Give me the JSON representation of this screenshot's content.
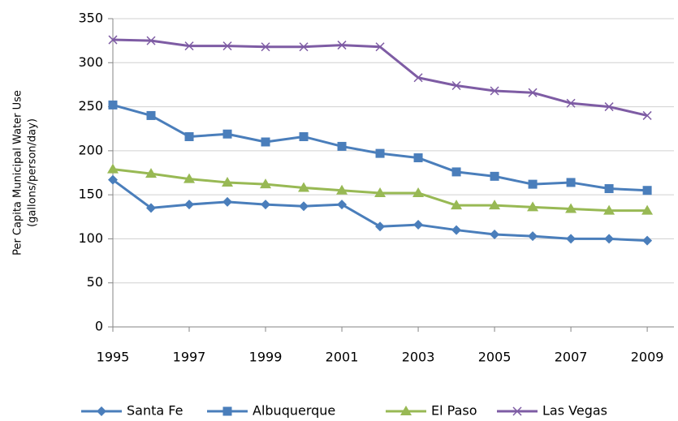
{
  "chart_data": {
    "type": "line",
    "ylabel": [
      "Per Capita Municipal Water Use",
      "(gallons/person/day)"
    ],
    "x": [
      1995,
      1996,
      1997,
      1998,
      1999,
      2000,
      2001,
      2002,
      2003,
      2004,
      2005,
      2006,
      2007,
      2008,
      2009
    ],
    "xlim": [
      1995,
      2009.7
    ],
    "xticks": [
      1995,
      1997,
      1999,
      2001,
      2003,
      2005,
      2007,
      2009
    ],
    "ylim": [
      0,
      350
    ],
    "yticks": [
      0,
      50,
      100,
      150,
      200,
      250,
      300,
      350
    ],
    "grid": true,
    "legend": "bottom",
    "series": [
      {
        "name": "Santa Fe",
        "color": "#4a7ebb",
        "marker": "diamond",
        "values": [
          167,
          135,
          139,
          142,
          139,
          137,
          139,
          114,
          116,
          110,
          105,
          103,
          100,
          100,
          98
        ]
      },
      {
        "name": "Albuquerque",
        "color": "#4a7ebb",
        "marker": "square",
        "values": [
          252,
          240,
          216,
          219,
          210,
          216,
          205,
          197,
          192,
          176,
          171,
          162,
          164,
          157,
          155
        ]
      },
      {
        "name": "El Paso",
        "color": "#98b954",
        "marker": "triangle",
        "values": [
          179,
          174,
          168,
          164,
          162,
          158,
          155,
          152,
          152,
          138,
          138,
          136,
          134,
          132,
          132
        ]
      },
      {
        "name": "Las Vegas",
        "color": "#7e5ca4",
        "marker": "x",
        "values": [
          326,
          325,
          319,
          319,
          318,
          318,
          320,
          318,
          283,
          274,
          268,
          266,
          254,
          250,
          240
        ]
      }
    ]
  }
}
